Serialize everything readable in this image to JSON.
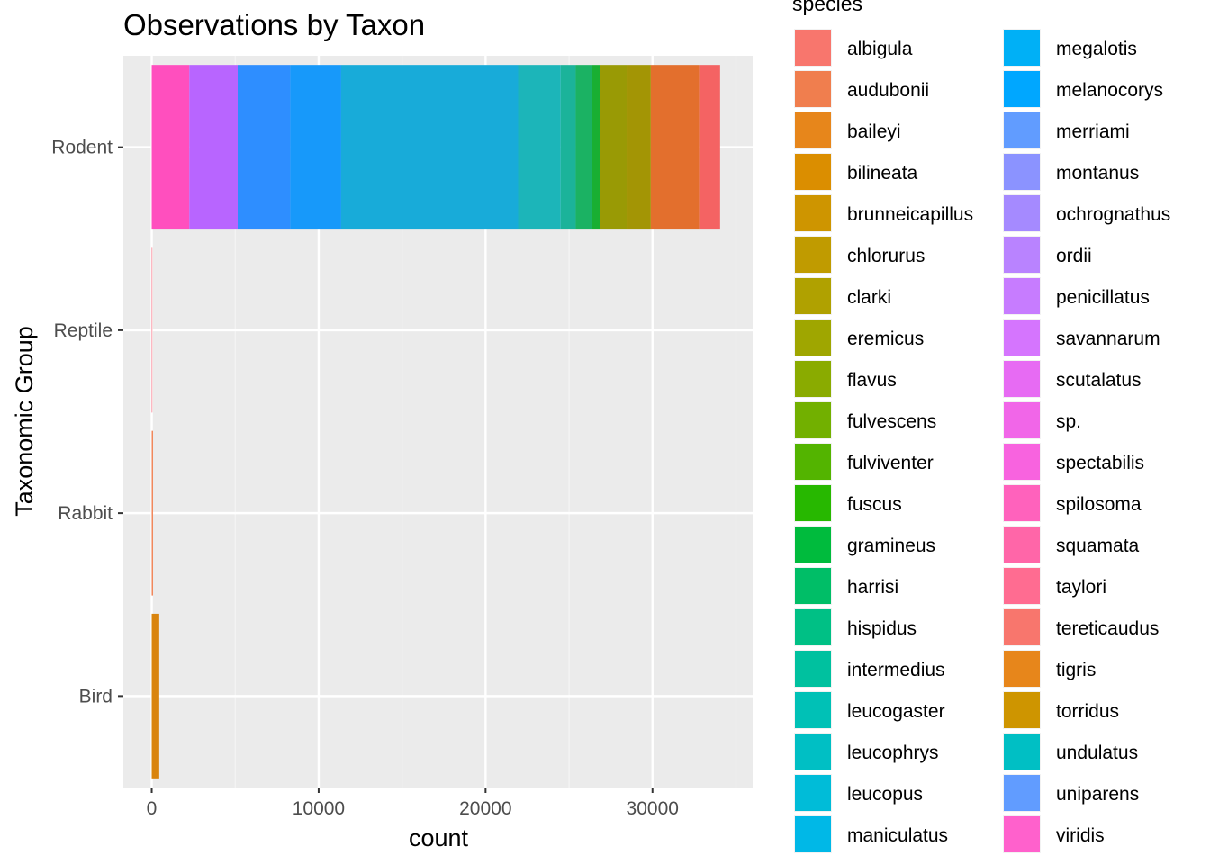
{
  "chart_data": {
    "type": "bar",
    "orientation": "horizontal",
    "stacked": true,
    "title": "Observations by Taxon",
    "xlabel": "count",
    "ylabel": "Taxonomic Group",
    "xlim": [
      -1700,
      36000
    ],
    "x_ticks": [
      0,
      10000,
      20000,
      30000
    ],
    "x_tick_labels": [
      "0",
      "10000",
      "20000",
      "30000"
    ],
    "categories": [
      "Rodent",
      "Reptile",
      "Rabbit",
      "Bird"
    ],
    "grid": true,
    "legend": {
      "title": "species",
      "position": "right",
      "species": [
        "albigula",
        "audubonii",
        "baileyi",
        "bilineata",
        "brunneicapillus",
        "chlorurus",
        "clarki",
        "eremicus",
        "flavus",
        "fulvescens",
        "fulviventer",
        "fuscus",
        "gramineus",
        "harrisi",
        "hispidus",
        "intermedius",
        "leucogaster",
        "leucophrys",
        "leucopus",
        "maniculatus",
        "megalotis",
        "melanocorys",
        "merriami",
        "montanus",
        "ochrognathus",
        "ordii",
        "penicillatus",
        "savannarum",
        "scutalatus",
        "sp.",
        "spectabilis",
        "spilosoma",
        "squamata",
        "taylori",
        "tereticaudus",
        "tigris",
        "torridus",
        "undulatus",
        "uniparens",
        "viridis"
      ],
      "colors": [
        "#F8766D",
        "#F07E4E",
        "#E7861B",
        "#DB8E00",
        "#CE9500",
        "#C09B00",
        "#B0A100",
        "#9FA600",
        "#8AAB00",
        "#72B000",
        "#53B400",
        "#27B800",
        "#00BB3D",
        "#00BE67",
        "#00C085",
        "#00C19F",
        "#00C1B6",
        "#00BFC4",
        "#00BCD8",
        "#00B8E7",
        "#00B0F6",
        "#00A7FF",
        "#619CFF",
        "#8B93FF",
        "#A58AFF",
        "#B983FF",
        "#C77CFF",
        "#D575FE",
        "#E76BF3",
        "#F166E8",
        "#F863DF",
        "#FF62BC",
        "#FF66A8",
        "#FF6C91",
        "#F8766D",
        "#E7861B",
        "#CE9500",
        "#00BFC4",
        "#619CFF",
        "#FF61CC"
      ]
    },
    "segments": {
      "Rodent": [
        {
          "species": "torridus",
          "value": 2250,
          "color": "#FF4FBE"
        },
        {
          "species": "spectabilis",
          "value": 2900,
          "color": "#B865FF"
        },
        {
          "species": "penicillatus",
          "value": 3150,
          "color": "#2E8EFF"
        },
        {
          "species": "ordii",
          "value": 3050,
          "color": "#1799FA"
        },
        {
          "species": "merriami",
          "value": 10600,
          "color": "#18ABD9"
        },
        {
          "species": "megalotis",
          "value": 2550,
          "color": "#1CB5B9"
        },
        {
          "species": "maniculatus",
          "value": 900,
          "color": "#1BB39A"
        },
        {
          "species": "leucogaster",
          "value": 1000,
          "color": "#1BB263"
        },
        {
          "species": "harrisi",
          "value": 450,
          "color": "#19AF32"
        },
        {
          "species": "flavus",
          "value": 1600,
          "color": "#999A05"
        },
        {
          "species": "eremicus",
          "value": 1450,
          "color": "#A39505"
        },
        {
          "species": "baileyi",
          "value": 2900,
          "color": "#E36F2D"
        },
        {
          "species": "albigula",
          "value": 1250,
          "color": "#F46363"
        }
      ],
      "Reptile": [
        {
          "species": "undulatus",
          "value": 8,
          "color": "#FF62BC"
        },
        {
          "species": "viridis",
          "value": 6,
          "color": "#F8766D"
        }
      ],
      "Rabbit": [
        {
          "species": "audubonii",
          "value": 75,
          "color": "#F07E4E"
        }
      ],
      "Bird": [
        {
          "species": "brunneicapillus",
          "value": 450,
          "color": "#D9840E"
        }
      ]
    }
  }
}
